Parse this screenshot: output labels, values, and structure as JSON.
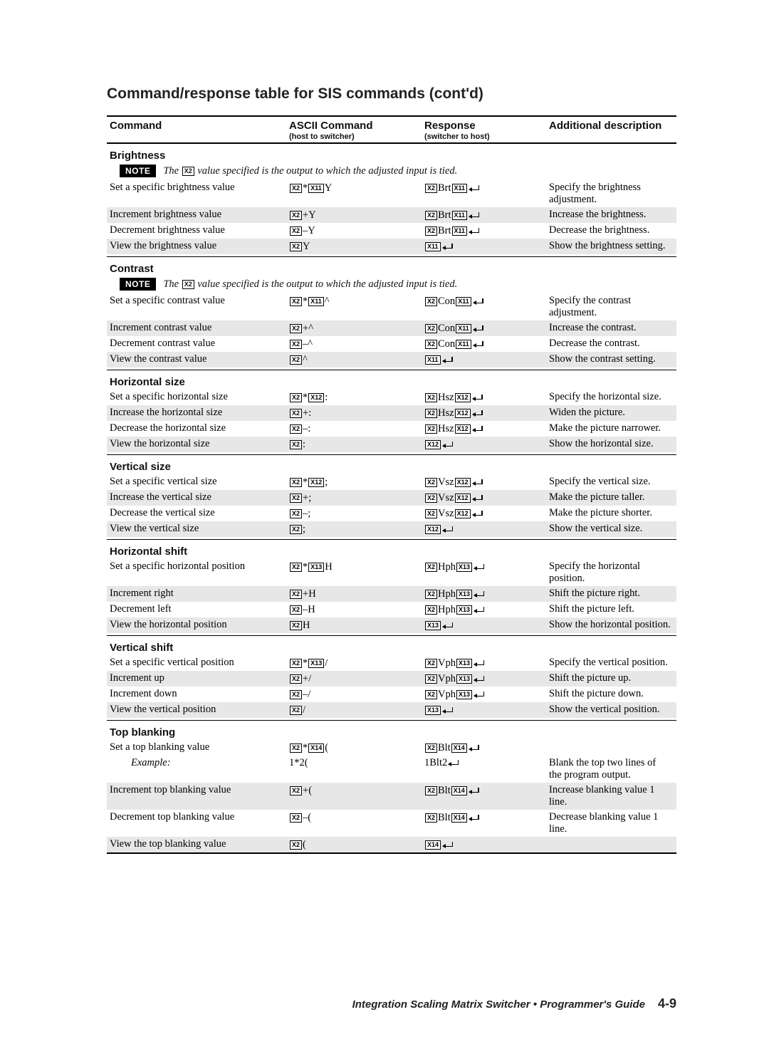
{
  "title": "Command/response table for SIS commands (cont'd)",
  "headers": {
    "c1": "Command",
    "c2": "ASCII Command",
    "c2sub": "(host to switcher)",
    "c3": "Response",
    "c3sub": "(switcher to host)",
    "c4": "Additional description"
  },
  "note_label": "NOTE",
  "note_text_pre": "The ",
  "note_box": "X2",
  "note_text_post": " value specified is the output to which the adjusted input is tied.",
  "sections": [
    {
      "title": "Brightness",
      "note": true,
      "rows": [
        {
          "shaded": false,
          "c1": "Set a specific brightness value",
          "c2": [
            {
              "b": "X2"
            },
            {
              "t": "*"
            },
            {
              "b": "X11"
            },
            {
              "t": "Y"
            }
          ],
          "c3": [
            {
              "b": "X2"
            },
            {
              "t": "Brt"
            },
            {
              "b": "X11"
            },
            {
              "e": true
            }
          ],
          "c4": "Specify the brightness adjustment."
        },
        {
          "shaded": true,
          "c1": "Increment brightness value",
          "c2": [
            {
              "b": "X2"
            },
            {
              "t": "+Y"
            }
          ],
          "c3": [
            {
              "b": "X2"
            },
            {
              "t": "Brt"
            },
            {
              "b": "X11"
            },
            {
              "e": true
            }
          ],
          "c4": "Increase the brightness."
        },
        {
          "shaded": false,
          "c1": "Decrement brightness value",
          "c2": [
            {
              "b": "X2"
            },
            {
              "t": "–Y"
            }
          ],
          "c3": [
            {
              "b": "X2"
            },
            {
              "t": "Brt"
            },
            {
              "b": "X11"
            },
            {
              "e": true
            }
          ],
          "c4": "Decrease the brightness."
        },
        {
          "shaded": true,
          "c1": "View the brightness value",
          "c2": [
            {
              "b": "X2"
            },
            {
              "t": "Y"
            }
          ],
          "c3": [
            {
              "b": "X11"
            },
            {
              "e": true
            }
          ],
          "c4": "Show the brightness setting."
        }
      ]
    },
    {
      "title": "Contrast",
      "note": true,
      "rows": [
        {
          "shaded": false,
          "c1": "Set a specific contrast value",
          "c2": [
            {
              "b": "X2"
            },
            {
              "t": "*"
            },
            {
              "b": "X11"
            },
            {
              "t": "^"
            }
          ],
          "c3": [
            {
              "b": "X2"
            },
            {
              "t": "Con"
            },
            {
              "b": "X11"
            },
            {
              "e": true
            }
          ],
          "c4": "Specify the contrast adjustment."
        },
        {
          "shaded": true,
          "c1": "Increment contrast value",
          "c2": [
            {
              "b": "X2"
            },
            {
              "t": "+^"
            }
          ],
          "c3": [
            {
              "b": "X2"
            },
            {
              "t": "Con"
            },
            {
              "b": "X11"
            },
            {
              "e": true
            }
          ],
          "c4": "Increase the contrast."
        },
        {
          "shaded": false,
          "c1": "Decrement contrast value",
          "c2": [
            {
              "b": "X2"
            },
            {
              "t": "–^"
            }
          ],
          "c3": [
            {
              "b": "X2"
            },
            {
              "t": "Con"
            },
            {
              "b": "X11"
            },
            {
              "e": true
            }
          ],
          "c4": "Decrease the contrast."
        },
        {
          "shaded": true,
          "c1": "View the contrast value",
          "c2": [
            {
              "b": "X2"
            },
            {
              "t": "^"
            }
          ],
          "c3": [
            {
              "b": "X11"
            },
            {
              "e": true
            }
          ],
          "c4": "Show the contrast setting."
        }
      ]
    },
    {
      "title": "Horizontal size",
      "note": false,
      "rows": [
        {
          "shaded": false,
          "c1": "Set a specific horizontal size",
          "c2": [
            {
              "b": "X2"
            },
            {
              "t": "*"
            },
            {
              "b": "X12"
            },
            {
              "t": ":"
            }
          ],
          "c3": [
            {
              "b": "X2"
            },
            {
              "t": "Hsz"
            },
            {
              "b": "X12"
            },
            {
              "e": true
            }
          ],
          "c4": "Specify the horizontal size."
        },
        {
          "shaded": true,
          "c1": "Increase the horizontal size",
          "c2": [
            {
              "b": "X2"
            },
            {
              "t": "+:"
            }
          ],
          "c3": [
            {
              "b": "X2"
            },
            {
              "t": "Hsz"
            },
            {
              "b": "X12"
            },
            {
              "e": true
            }
          ],
          "c4": "Widen the picture."
        },
        {
          "shaded": false,
          "c1": "Decrease the horizontal size",
          "c2": [
            {
              "b": "X2"
            },
            {
              "t": "–:"
            }
          ],
          "c3": [
            {
              "b": "X2"
            },
            {
              "t": "Hsz"
            },
            {
              "b": "X12"
            },
            {
              "e": true
            }
          ],
          "c4": "Make the picture narrower."
        },
        {
          "shaded": true,
          "c1": "View the horizontal size",
          "c2": [
            {
              "b": "X2"
            },
            {
              "t": ":"
            }
          ],
          "c3": [
            {
              "b": "X12"
            },
            {
              "e": true
            }
          ],
          "c4": "Show the horizontal size."
        }
      ]
    },
    {
      "title": "Vertical size",
      "note": false,
      "rows": [
        {
          "shaded": false,
          "c1": "Set a specific vertical size",
          "c2": [
            {
              "b": "X2"
            },
            {
              "t": "*"
            },
            {
              "b": "X12"
            },
            {
              "t": ";"
            }
          ],
          "c3": [
            {
              "b": "X2"
            },
            {
              "t": "Vsz"
            },
            {
              "b": "X12"
            },
            {
              "e": true
            }
          ],
          "c4": "Specify the vertical size."
        },
        {
          "shaded": true,
          "c1": "Increase the vertical size",
          "c2": [
            {
              "b": "X2"
            },
            {
              "t": "+;"
            }
          ],
          "c3": [
            {
              "b": "X2"
            },
            {
              "t": "Vsz"
            },
            {
              "b": "X12"
            },
            {
              "e": true
            }
          ],
          "c4": "Make the picture taller."
        },
        {
          "shaded": false,
          "c1": "Decrease the vertical size",
          "c2": [
            {
              "b": "X2"
            },
            {
              "t": "–;"
            }
          ],
          "c3": [
            {
              "b": "X2"
            },
            {
              "t": "Vsz"
            },
            {
              "b": "X12"
            },
            {
              "e": true
            }
          ],
          "c4": "Make the picture shorter."
        },
        {
          "shaded": true,
          "c1": "View the vertical size",
          "c2": [
            {
              "b": "X2"
            },
            {
              "t": ";"
            }
          ],
          "c3": [
            {
              "b": "X12"
            },
            {
              "e": true
            }
          ],
          "c4": "Show the vertical size."
        }
      ]
    },
    {
      "title": "Horizontal shift",
      "note": false,
      "rows": [
        {
          "shaded": false,
          "c1": "Set a specific horizontal position",
          "c2": [
            {
              "b": "X2"
            },
            {
              "t": "*"
            },
            {
              "b": "X13"
            },
            {
              "t": "H"
            }
          ],
          "c3": [
            {
              "b": "X2"
            },
            {
              "t": "Hph"
            },
            {
              "b": "X13"
            },
            {
              "e": true
            }
          ],
          "c4": "Specify the horizontal position."
        },
        {
          "shaded": true,
          "c1": "Increment right",
          "c2": [
            {
              "b": "X2"
            },
            {
              "t": "+H"
            }
          ],
          "c3": [
            {
              "b": "X2"
            },
            {
              "t": "Hph"
            },
            {
              "b": "X13"
            },
            {
              "e": true
            }
          ],
          "c4": "Shift the picture right."
        },
        {
          "shaded": false,
          "c1": "Decrement left",
          "c2": [
            {
              "b": "X2"
            },
            {
              "t": "–H"
            }
          ],
          "c3": [
            {
              "b": "X2"
            },
            {
              "t": "Hph"
            },
            {
              "b": "X13"
            },
            {
              "e": true
            }
          ],
          "c4": "Shift the picture left."
        },
        {
          "shaded": true,
          "c1": "View the horizontal position",
          "c2": [
            {
              "b": "X2"
            },
            {
              "t": "H"
            }
          ],
          "c3": [
            {
              "b": "X13"
            },
            {
              "e": true
            }
          ],
          "c4": "Show the horizontal position."
        }
      ]
    },
    {
      "title": "Vertical shift",
      "note": false,
      "rows": [
        {
          "shaded": false,
          "c1": "Set a specific vertical position",
          "c2": [
            {
              "b": "X2"
            },
            {
              "t": "*"
            },
            {
              "b": "X13"
            },
            {
              "t": "/"
            }
          ],
          "c3": [
            {
              "b": "X2"
            },
            {
              "t": "Vph"
            },
            {
              "b": "X13"
            },
            {
              "e": true
            }
          ],
          "c4": "Specify the vertical position."
        },
        {
          "shaded": true,
          "c1": "Increment up",
          "c2": [
            {
              "b": "X2"
            },
            {
              "t": "+/"
            }
          ],
          "c3": [
            {
              "b": "X2"
            },
            {
              "t": "Vph"
            },
            {
              "b": "X13"
            },
            {
              "e": true
            }
          ],
          "c4": "Shift the picture up."
        },
        {
          "shaded": false,
          "c1": "Increment down",
          "c2": [
            {
              "b": "X2"
            },
            {
              "t": "–/"
            }
          ],
          "c3": [
            {
              "b": "X2"
            },
            {
              "t": "Vph"
            },
            {
              "b": "X13"
            },
            {
              "e": true
            }
          ],
          "c4": "Shift the picture down."
        },
        {
          "shaded": true,
          "c1": "View the vertical position",
          "c2": [
            {
              "b": "X2"
            },
            {
              "t": "/"
            }
          ],
          "c3": [
            {
              "b": "X13"
            },
            {
              "e": true
            }
          ],
          "c4": "Show the vertical position."
        }
      ]
    },
    {
      "title": "Top blanking",
      "note": false,
      "rows": [
        {
          "shaded": false,
          "c1": "Set a top blanking value",
          "c2": [
            {
              "b": "X2"
            },
            {
              "t": "*"
            },
            {
              "b": "X14"
            },
            {
              "t": "("
            }
          ],
          "c3": [
            {
              "b": "X2"
            },
            {
              "t": "Blt"
            },
            {
              "b": "X14"
            },
            {
              "e": true
            }
          ],
          "c4": ""
        },
        {
          "shaded": false,
          "c1_example": "Example:",
          "c2": [
            {
              "t": "1*2("
            }
          ],
          "c3": [
            {
              "t": "1Blt2"
            },
            {
              "e": true
            }
          ],
          "c4": "Blank the top two lines of the program output."
        },
        {
          "shaded": true,
          "c1": "Increment top blanking value",
          "c2": [
            {
              "b": "X2"
            },
            {
              "t": "+("
            }
          ],
          "c3": [
            {
              "b": "X2"
            },
            {
              "t": "Blt"
            },
            {
              "b": "X14"
            },
            {
              "e": true
            }
          ],
          "c4": "Increase blanking value 1 line."
        },
        {
          "shaded": false,
          "c1": "Decrement top blanking value",
          "c2": [
            {
              "b": "X2"
            },
            {
              "t": "–("
            }
          ],
          "c3": [
            {
              "b": "X2"
            },
            {
              "t": "Blt"
            },
            {
              "b": "X14"
            },
            {
              "e": true
            }
          ],
          "c4": "Decrease blanking value 1 line."
        },
        {
          "shaded": true,
          "c1": "View the top blanking value",
          "c2": [
            {
              "b": "X2"
            },
            {
              "t": "("
            }
          ],
          "c3": [
            {
              "b": "X14"
            },
            {
              "e": true
            }
          ],
          "c4": ""
        }
      ]
    }
  ],
  "footer": {
    "text": "Integration Scaling Matrix Switcher • Programmer's Guide",
    "page": "4-9"
  }
}
